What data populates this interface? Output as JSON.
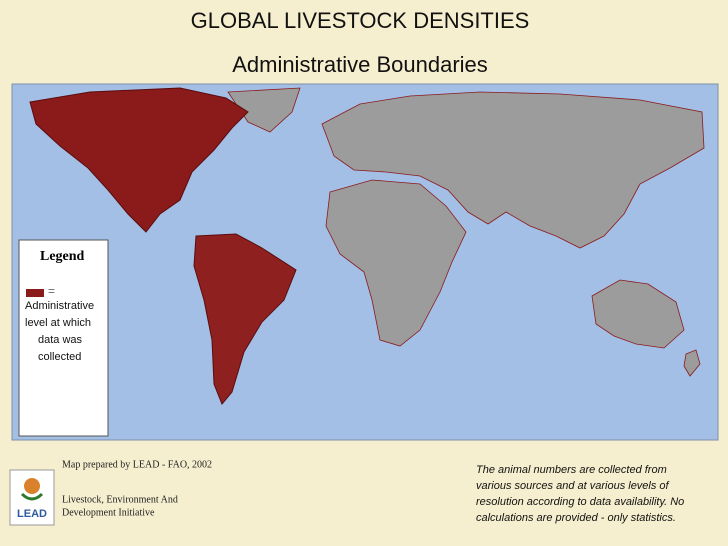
{
  "header": {
    "title": "GLOBAL LIVESTOCK DENSITIES",
    "subtitle": "Administrative Boundaries"
  },
  "legend": {
    "title": "Legend",
    "symbol": "=",
    "label_lines": [
      "Administrative",
      "level at which",
      "data was",
      "collected"
    ]
  },
  "footer": {
    "prepared_by": "Map prepared by LEAD - FAO, 2002",
    "initiative_lines": [
      "Livestock, Environment  And",
      "Development Initiative"
    ],
    "logo_text": "LEAD",
    "note_lines": [
      "The animal numbers are collected from",
      "various sources and at various levels of",
      "resolution according to data availability. No",
      "calculations are provided - only statistics."
    ]
  }
}
